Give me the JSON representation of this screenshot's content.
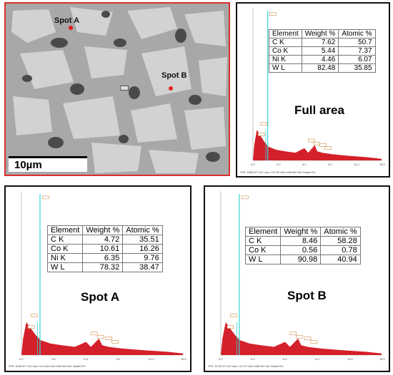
{
  "sem": {
    "spot_a_label": "Spot A",
    "spot_b_label": "Spot B",
    "scale_bar_label": "10µm"
  },
  "table_headers": [
    "Element",
    "Weight %",
    "Atomic %"
  ],
  "spectra": {
    "full": {
      "label": "Full area",
      "rows": [
        {
          "element": "C  K",
          "weight": "7.62",
          "atomic": "50.7"
        },
        {
          "element": "Co K",
          "weight": "5.44",
          "atomic": "7.37"
        },
        {
          "element": "Ni K",
          "weight": "4.46",
          "atomic": "6.07"
        },
        {
          "element": "W  L",
          "weight": "82.48",
          "atomic": "35.85"
        }
      ]
    },
    "spotA": {
      "label": "Spot A",
      "rows": [
        {
          "element": "C  K",
          "weight": "4.72",
          "atomic": "35.51"
        },
        {
          "element": "Co K",
          "weight": "10.61",
          "atomic": "16.26"
        },
        {
          "element": "Ni K",
          "weight": "6.35",
          "atomic": "9.76"
        },
        {
          "element": "W  L",
          "weight": "78.32",
          "atomic": "38.47"
        }
      ]
    },
    "spotB": {
      "label": "Spot B",
      "rows": [
        {
          "element": "C  K",
          "weight": "8.46",
          "atomic": "58.28"
        },
        {
          "element": "Co K",
          "weight": "0.56",
          "atomic": "0.78"
        },
        {
          "element": "W  L",
          "weight": "90.98",
          "atomic": "40.94"
        }
      ]
    }
  },
  "axis_ticks": [
    "0.0",
    "3.0",
    "6.0",
    "9.0",
    "12.0",
    "15.0"
  ],
  "footer": {
    "full": "CPS: 11826   DT: 16.0   Lsec: 10.0   36 Cnts   0.000 keV   Det: Octane Pro",
    "spotA": "CPS: 11915   DT: 16.2   Lsec: 10.0   245 Cnts   0.640 keV   Det: Octane Pro",
    "spotB": "CPS: 11704   DT: 16.3   Lsec: 10.0   97 Cnts   0.640 keV   Det: Octane Pro"
  },
  "colors": {
    "spectrum_fill": "#d4202a",
    "peak_line": "#2fd6d6",
    "frame_red": "#d9302c"
  }
}
